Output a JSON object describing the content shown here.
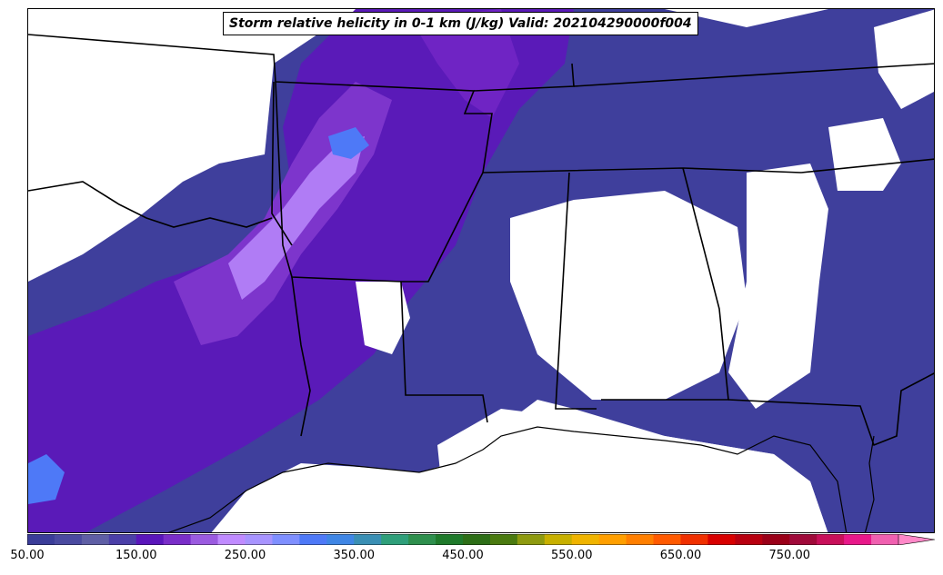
{
  "title": "Storm relative helicity in 0-1 km (J/kg) Valid: 202104290000f004",
  "colorbar": {
    "min": 50,
    "step": 25,
    "extend": "max",
    "tick_values": [
      50,
      150,
      250,
      350,
      450,
      550,
      650,
      750
    ],
    "tick_labels": [
      "50.00",
      "150.00",
      "250.00",
      "350.00",
      "450.00",
      "550.00",
      "650.00",
      "750.00"
    ],
    "colors": [
      "#3b3d99",
      "#4a4aa0",
      "#5f5fa5",
      "#4b3fa8",
      "#5a16bb",
      "#7a2ec9",
      "#9b5be0",
      "#c08bff",
      "#a894ff",
      "#7f8fff",
      "#4e79f7",
      "#3f86e5",
      "#3a8fb4",
      "#2f9f7a",
      "#2e8f4d",
      "#1f7a2b",
      "#2d6e17",
      "#4a7a10",
      "#8e9a10",
      "#c8b000",
      "#f0b400",
      "#ff9f00",
      "#ff7f00",
      "#ff5a00",
      "#f03000",
      "#d80000",
      "#b80010",
      "#9a0018",
      "#a00a3a",
      "#c8105a",
      "#e8188a",
      "#f060b0",
      "#ff88c8"
    ]
  },
  "map": {
    "region": "South-central and southeastern United States",
    "field": "storm relative helicity 0-1 km"
  }
}
